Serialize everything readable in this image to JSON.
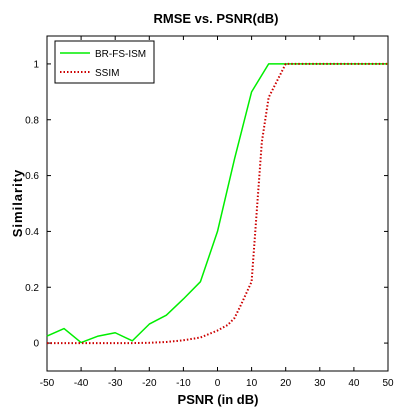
{
  "chart_data": {
    "type": "line",
    "title": "RMSE vs. PSNR(dB)",
    "xlabel": "PSNR (in dB)",
    "ylabel": "Similarity",
    "xlim": [
      -50,
      50
    ],
    "ylim": [
      -0.1,
      1.1
    ],
    "xticks": [
      -50,
      -40,
      -30,
      -20,
      -10,
      0,
      10,
      20,
      30,
      40,
      50
    ],
    "yticks": [
      0,
      0.2,
      0.4,
      0.6,
      0.8,
      1
    ],
    "xtick_labels": [
      "-50",
      "-40",
      "-30",
      "-20",
      "-10",
      "0",
      "10",
      "20",
      "30",
      "40",
      "50"
    ],
    "ytick_labels": [
      "0",
      "0.2",
      "0.4",
      "0.6",
      "0.8",
      "1"
    ],
    "grid": false,
    "legend_position": "top-left",
    "series": [
      {
        "name": "BR-FS-ISM",
        "color": "#00ee00",
        "style": "solid",
        "x": [
          -50,
          -45,
          -40,
          -35,
          -30,
          -25,
          -20,
          -15,
          -10,
          -5,
          0,
          5,
          10,
          15,
          20,
          25,
          30,
          35,
          40,
          45,
          50
        ],
        "y": [
          0.025,
          0.052,
          0.002,
          0.025,
          0.037,
          0.008,
          0.068,
          0.1,
          0.158,
          0.22,
          0.4,
          0.66,
          0.9,
          1.0,
          1.0,
          1.0,
          1.0,
          1.0,
          1.0,
          1.0,
          1.0
        ]
      },
      {
        "name": "SSIM",
        "color": "#cc0000",
        "style": "dotted",
        "x": [
          -50,
          -45,
          -40,
          -35,
          -30,
          -25,
          -20,
          -15,
          -10,
          -5,
          0,
          3,
          5,
          7,
          10,
          13,
          15,
          20,
          25,
          30,
          35,
          40,
          45,
          50
        ],
        "y": [
          0.0,
          0.0,
          0.0,
          0.0,
          0.0,
          0.0,
          0.001,
          0.004,
          0.01,
          0.02,
          0.045,
          0.065,
          0.09,
          0.14,
          0.22,
          0.72,
          0.88,
          1.0,
          1.0,
          1.0,
          1.0,
          1.0,
          1.0,
          1.0
        ]
      }
    ]
  }
}
